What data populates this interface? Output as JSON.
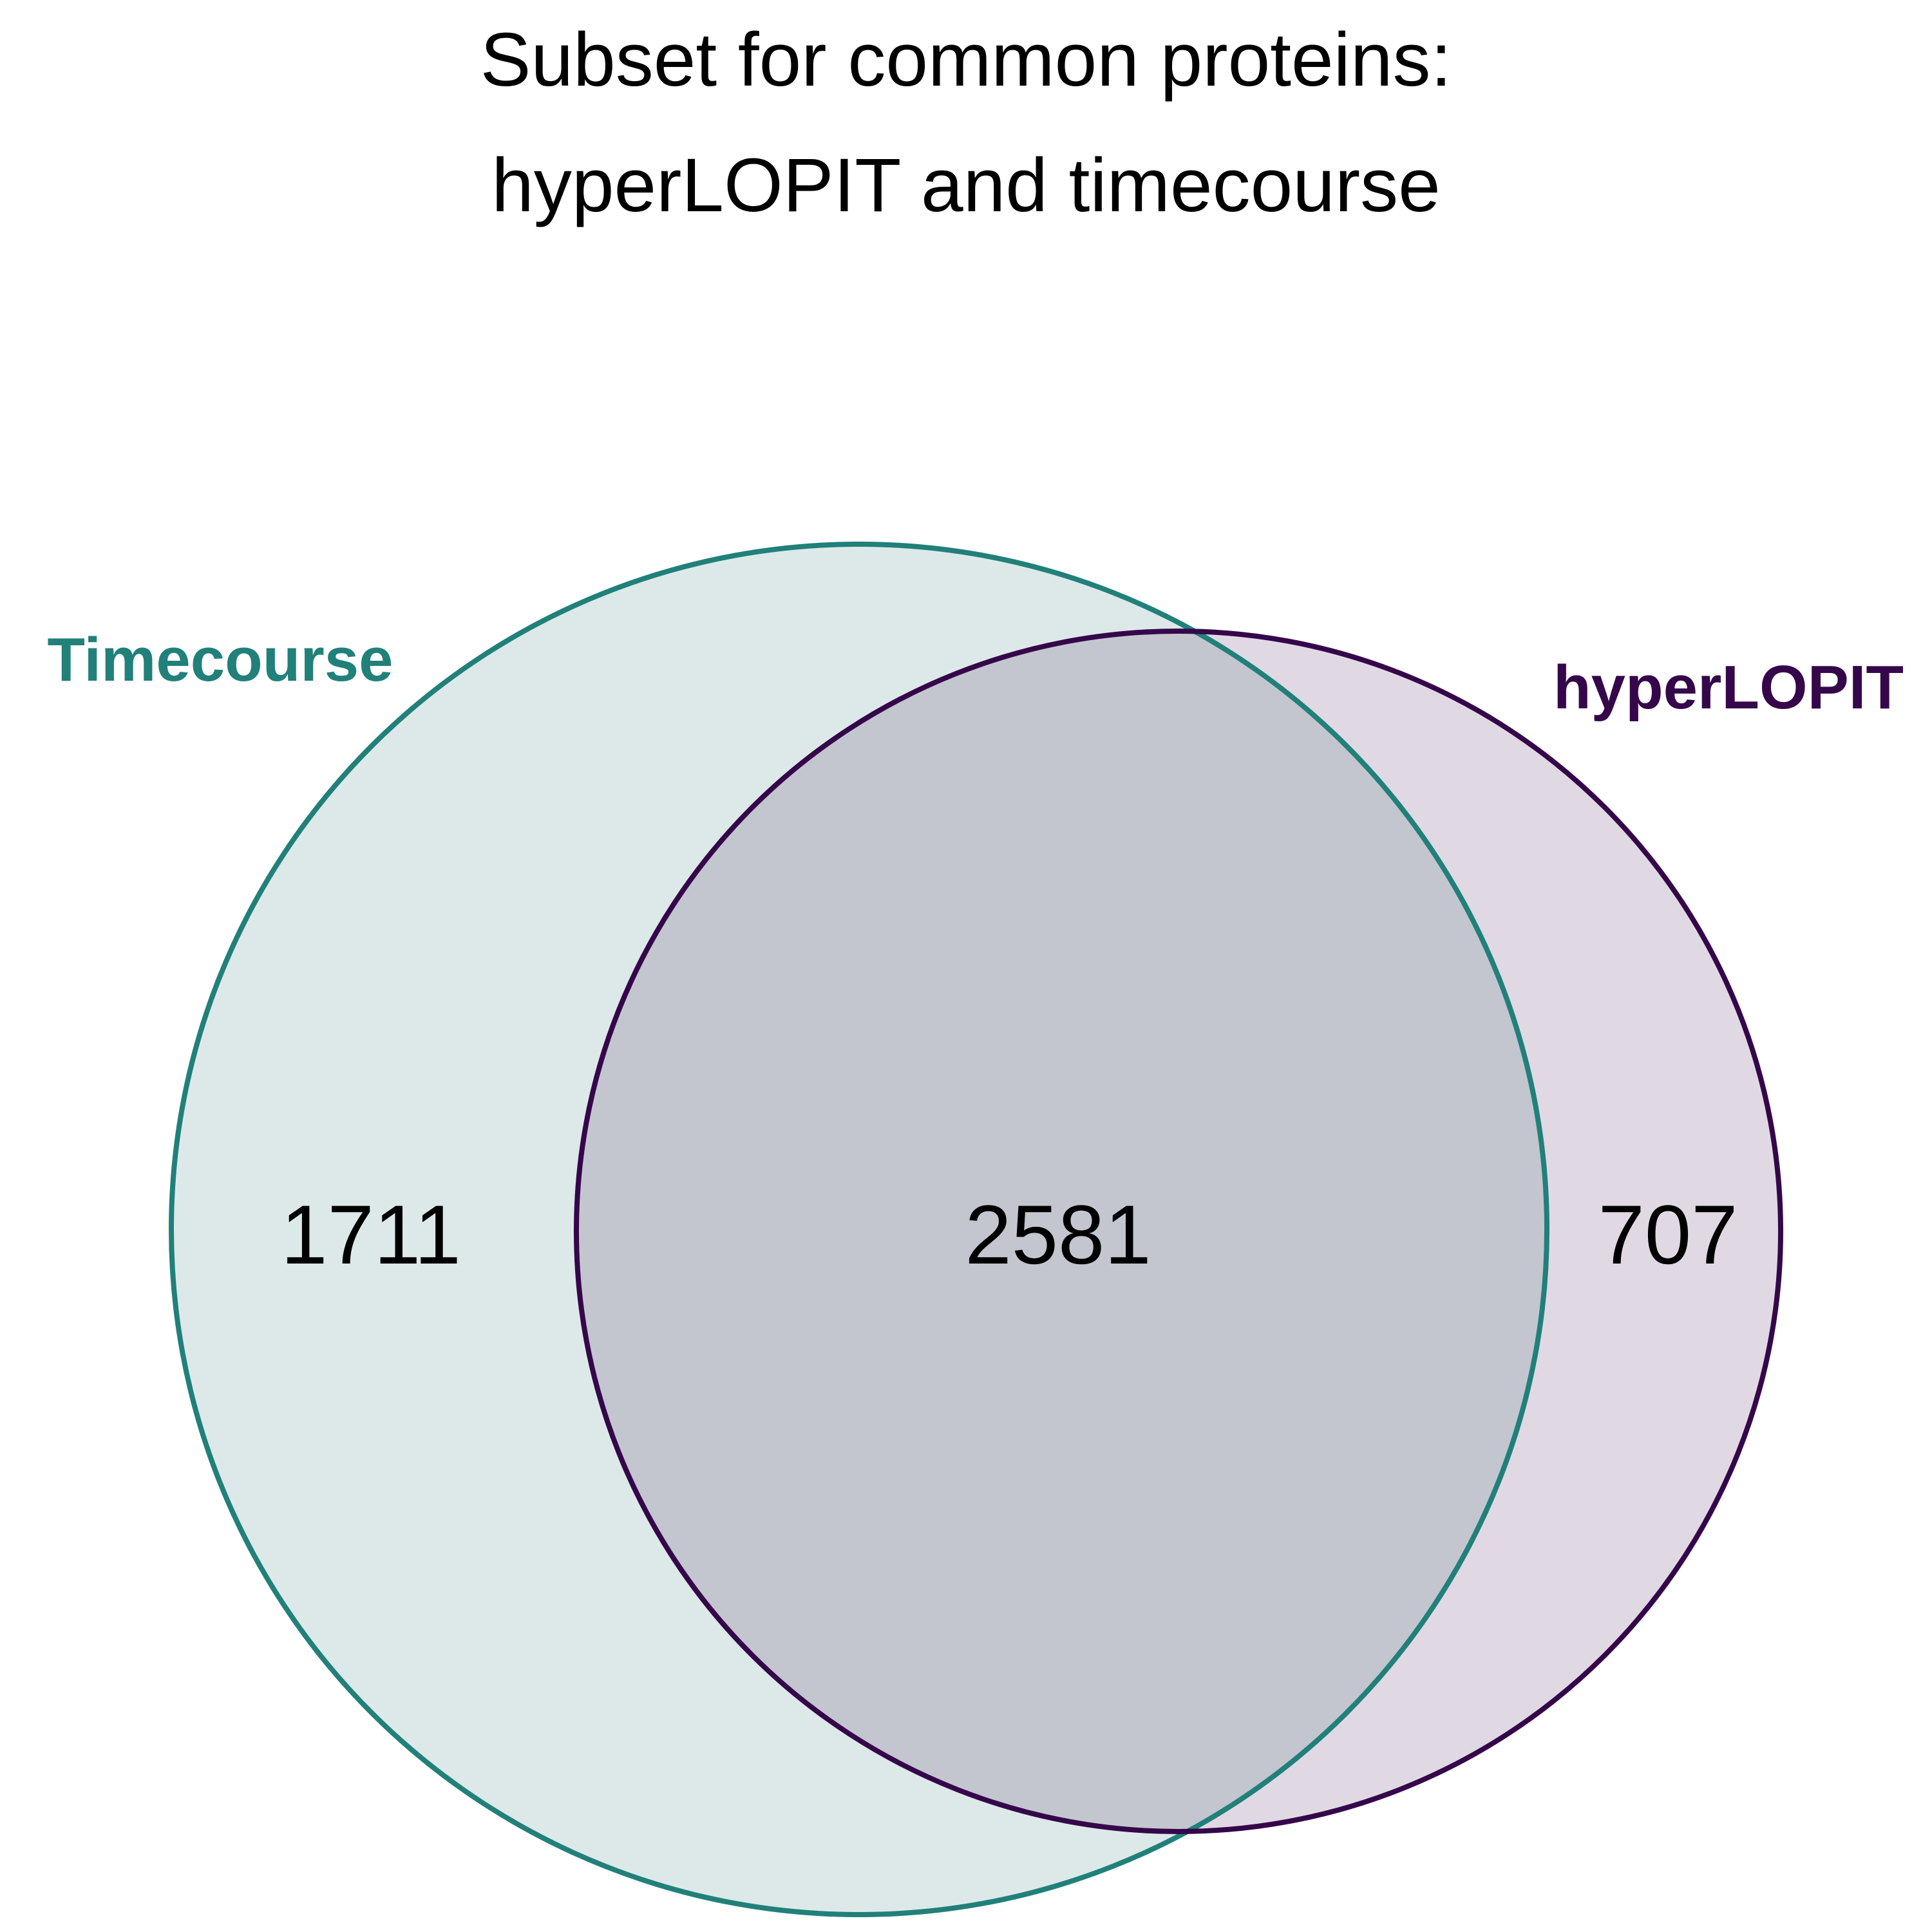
{
  "figure": {
    "title_line1": "Subset for common proteins:",
    "title_line2": "hyperLOPIT and timecourse"
  },
  "sets": [
    {
      "name": "Timecourse",
      "only_count": "1711",
      "stroke_color": "#21807a",
      "fill_color": "#dde9e9"
    },
    {
      "name": "hyperLOPIT",
      "only_count": "707",
      "stroke_color": "#35074a",
      "fill_color": "#e0d9e4"
    }
  ],
  "intersection": {
    "count": "2581",
    "fill_color": "#c3c6cf"
  }
}
